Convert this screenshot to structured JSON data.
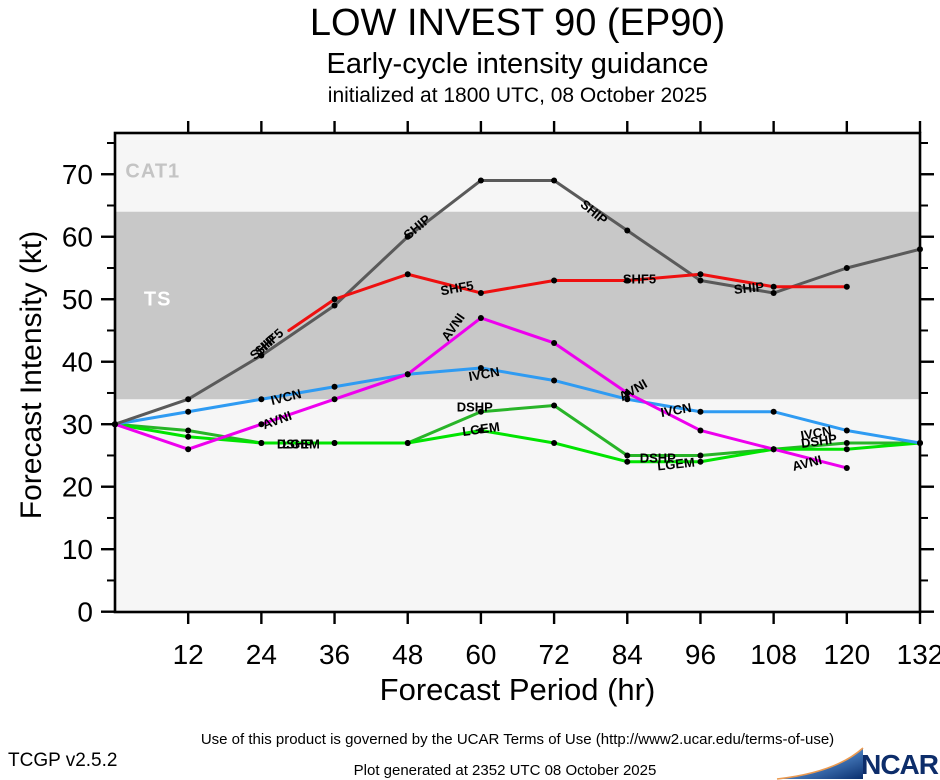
{
  "header": {
    "title": "LOW INVEST 90 (EP90)",
    "subtitle": "Early-cycle intensity guidance",
    "init_line": "initialized at 1800 UTC, 08 October 2025"
  },
  "chart_data": {
    "type": "line",
    "title": "LOW INVEST 90 (EP90) early-cycle intensity guidance",
    "xlabel": "Forecast Period (hr)",
    "ylabel": "Forecast Intensity (kt)",
    "x_range": [
      0,
      132
    ],
    "y_range": [
      0,
      76.6
    ],
    "x_ticks": [
      12,
      24,
      36,
      48,
      60,
      72,
      84,
      96,
      108,
      120,
      132
    ],
    "y_ticks": [
      0,
      10,
      20,
      30,
      40,
      50,
      60,
      70
    ],
    "y_minor_ticks": [
      5,
      15,
      25,
      35,
      45,
      55,
      65,
      75
    ],
    "grid": "off",
    "plot_bg_color": "#f6f6f6",
    "zones": {
      "ts_band": [
        34,
        64
      ],
      "band_color": "#c8c8c8",
      "ts": {
        "text": "TS",
        "x": 7,
        "y": 49.8,
        "color": "#ffffff"
      },
      "cat1": {
        "text": "CAT1",
        "x": 6.2,
        "y": 70.4,
        "color": "#c4c4c4"
      }
    },
    "series": [
      {
        "name": "DSHP",
        "color": "#28b428",
        "x": [
          0,
          12,
          24,
          36,
          48,
          60,
          72,
          84,
          96,
          108,
          120,
          132
        ],
        "y": [
          30,
          29,
          27,
          27,
          27,
          32,
          33,
          25,
          25,
          26,
          27,
          27
        ]
      },
      {
        "name": "LGEM",
        "color": "#00e400",
        "x": [
          0,
          12,
          24,
          36,
          48,
          60,
          72,
          84,
          96,
          108,
          120,
          132
        ],
        "y": [
          30,
          28,
          27,
          27,
          27,
          29,
          27,
          24,
          24,
          26,
          26,
          27
        ]
      },
      {
        "name": "IVCN",
        "color": "#2f9bf2",
        "x": [
          0,
          12,
          24,
          36,
          48,
          60,
          72,
          84,
          96,
          108,
          120,
          132
        ],
        "y": [
          30,
          32,
          34,
          36,
          38,
          39,
          37,
          34,
          32,
          32,
          29,
          27
        ]
      },
      {
        "name": "AVNI",
        "color": "#ee00ee",
        "x": [
          0,
          12,
          24,
          36,
          48,
          60,
          72,
          84,
          96,
          108,
          120
        ],
        "y": [
          30,
          26,
          30,
          34,
          38,
          47,
          43,
          35,
          29,
          26,
          23
        ]
      },
      {
        "name": "SHIP",
        "color": "#5a5a5a",
        "x": [
          0,
          12,
          24,
          36,
          48,
          60,
          72,
          84,
          96,
          108,
          120,
          132
        ],
        "y": [
          30,
          34,
          41,
          49,
          60,
          69,
          69,
          61,
          53,
          51,
          55,
          58
        ]
      },
      {
        "name": "SHF5",
        "color": "#ee1010",
        "no_dot_first": true,
        "x": [
          28.5,
          36,
          48,
          60,
          72,
          84,
          96,
          108,
          120
        ],
        "y": [
          45,
          50,
          54,
          51,
          53,
          53,
          54,
          52,
          52
        ]
      }
    ],
    "line_labels": [
      {
        "text": "SHIP",
        "x": 24.2,
        "y": 42.3,
        "rot": -42
      },
      {
        "text": "SHF5",
        "x": 25.2,
        "y": 43.2,
        "rot": -42
      },
      {
        "text": "AVNI",
        "x": 26.5,
        "y": 30.6,
        "rot": -20
      },
      {
        "text": "IVCN",
        "x": 28.0,
        "y": 34.3,
        "rot": -14
      },
      {
        "text": "DSHP",
        "x": 29.5,
        "y": 26.8,
        "rot": 0
      },
      {
        "text": "LGEM",
        "x": 30.5,
        "y": 26.8,
        "rot": 0
      },
      {
        "text": "SHIP",
        "x": 49.5,
        "y": 61.5,
        "rot": -40
      },
      {
        "text": "SHF5",
        "x": 56.0,
        "y": 51.8,
        "rot": -10
      },
      {
        "text": "AVNI",
        "x": 55.5,
        "y": 45.5,
        "rot": -55
      },
      {
        "text": "IVCN",
        "x": 60.5,
        "y": 38.0,
        "rot": -10
      },
      {
        "text": "DSHP",
        "x": 59.0,
        "y": 32.8,
        "rot": 0
      },
      {
        "text": "LGEM",
        "x": 60.0,
        "y": 29.2,
        "rot": -8
      },
      {
        "text": "SHIP",
        "x": 78.5,
        "y": 64.0,
        "rot": 40
      },
      {
        "text": "SHF5",
        "x": 86.0,
        "y": 53.2,
        "rot": 0
      },
      {
        "text": "AVNI",
        "x": 85.0,
        "y": 35.5,
        "rot": -30
      },
      {
        "text": "IVCN",
        "x": 92.0,
        "y": 32.3,
        "rot": -10
      },
      {
        "text": "DSHP",
        "x": 89.0,
        "y": 24.6,
        "rot": 0
      },
      {
        "text": "LGEM",
        "x": 92.0,
        "y": 23.7,
        "rot": -6
      },
      {
        "text": "SHIP",
        "x": 104.0,
        "y": 51.8,
        "rot": -6
      },
      {
        "text": "AVNI",
        "x": 113.5,
        "y": 23.8,
        "rot": -14
      },
      {
        "text": "IVCN",
        "x": 115.0,
        "y": 28.6,
        "rot": -10
      },
      {
        "text": "DSHP",
        "x": 115.5,
        "y": 27.3,
        "rot": -8
      }
    ],
    "axis_labels": {
      "x_title": "Forecast Period (hr)",
      "y_title": "Forecast Intensity (kt)"
    }
  },
  "footer": {
    "version": "TCGP v2.5.2",
    "terms": "Use of this product is governed by the UCAR Terms of Use (http://www2.ucar.edu/terms-of-use)",
    "generated": "Plot generated at 2352 UTC   08 October 2025",
    "ncar": "NCAR"
  }
}
